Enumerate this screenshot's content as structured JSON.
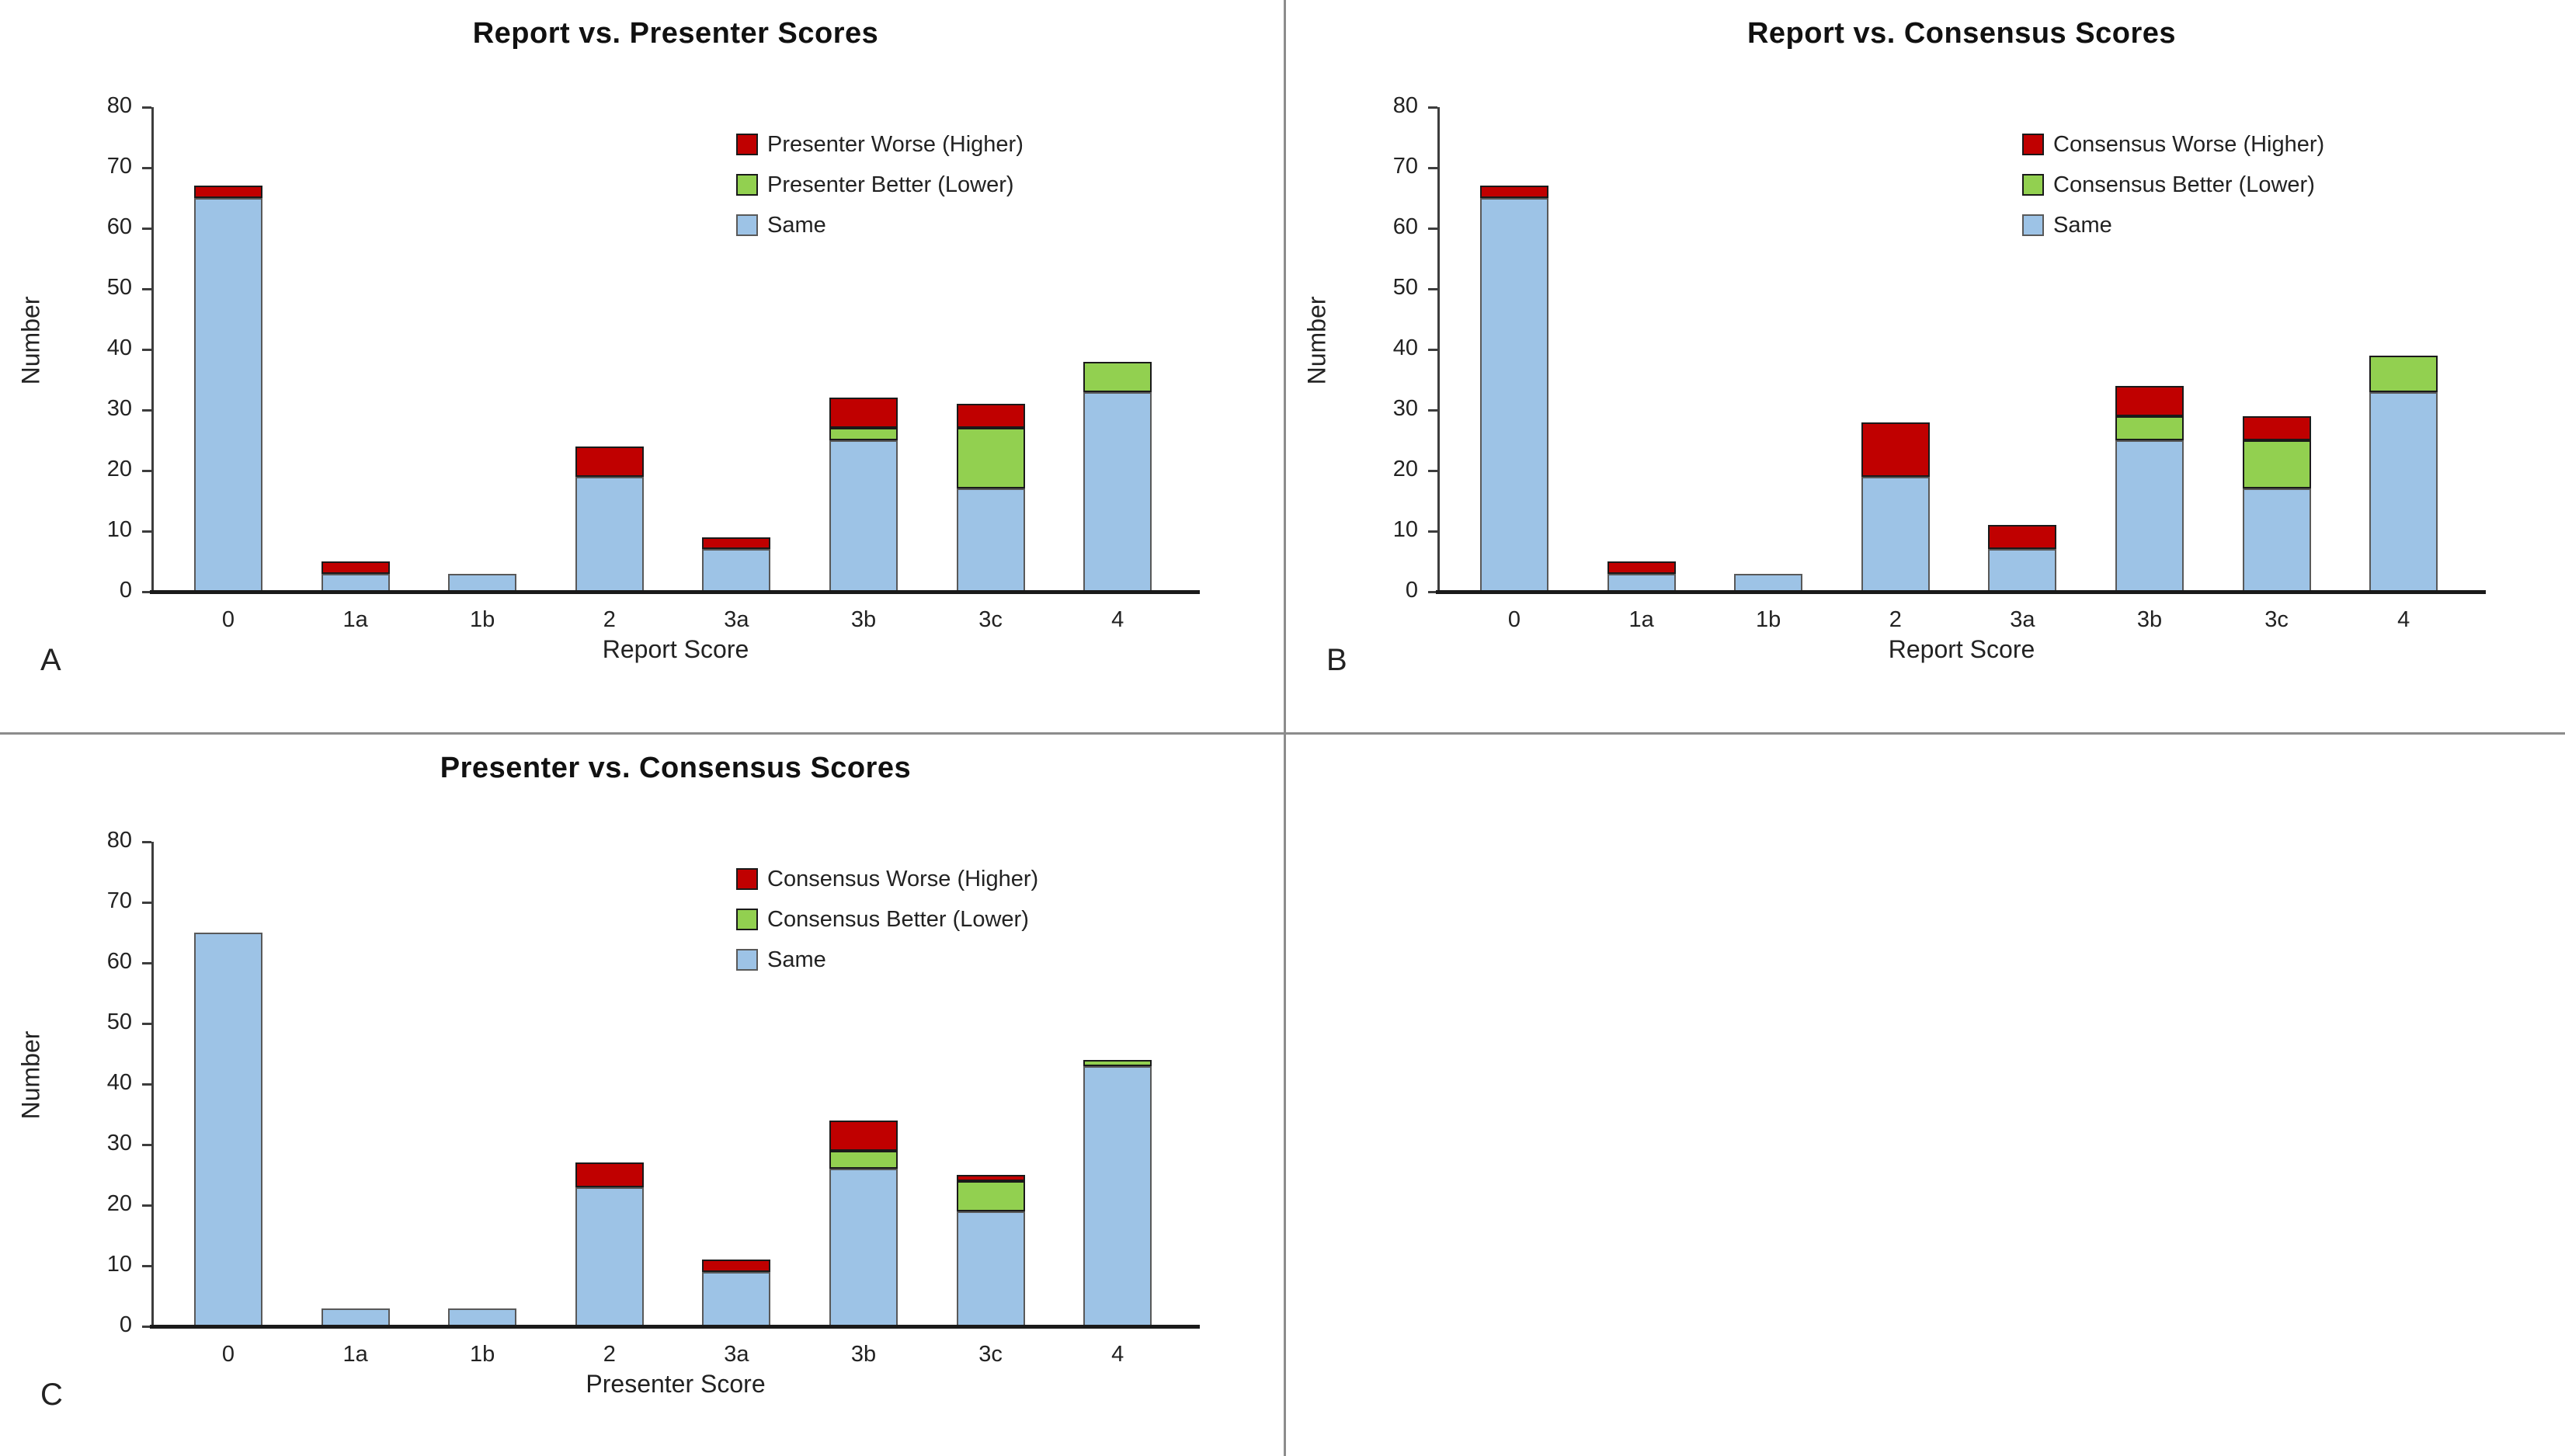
{
  "page": {
    "background": "#ffffff",
    "divider_color": "#8c8c8c"
  },
  "palette": {
    "same_fill": "#9DC3E6",
    "same_border": "#595959",
    "better_fill": "#92D050",
    "worse_fill": "#C00000",
    "diff_border": "#1a1a1a",
    "axis_color": "#1a1a1a",
    "text_color": "#222222"
  },
  "chart_data": [
    {
      "panel_label": "A",
      "type": "bar",
      "stacked": true,
      "title": "Report vs. Presenter Scores",
      "xlabel": "Report Score",
      "ylabel": "Number",
      "ylim": [
        0,
        80
      ],
      "ytick_step": 10,
      "grid": false,
      "legend_position": "upper-right-inside",
      "categories": [
        "0",
        "1a",
        "1b",
        "2",
        "3a",
        "3b",
        "3c",
        "4"
      ],
      "series": [
        {
          "name": "Same",
          "color": "#9DC3E6",
          "border": "#595959",
          "values": [
            65,
            3,
            3,
            19,
            7,
            25,
            17,
            33
          ]
        },
        {
          "name": "Presenter Better (Lower)",
          "color": "#92D050",
          "border": "#1a1a1a",
          "values": [
            0,
            0,
            0,
            0,
            0,
            2,
            10,
            5
          ]
        },
        {
          "name": "Presenter Worse (Higher)",
          "color": "#C00000",
          "border": "#1a1a1a",
          "values": [
            2,
            2,
            0,
            5,
            2,
            5,
            4,
            0
          ]
        }
      ],
      "totals": [
        67,
        5,
        3,
        24,
        9,
        32,
        31,
        38
      ],
      "legend": [
        {
          "label": "Presenter Worse (Higher)",
          "color": "#C00000",
          "border": "#1a1a1a"
        },
        {
          "label": "Presenter Better (Lower)",
          "color": "#92D050",
          "border": "#1a1a1a"
        },
        {
          "label": "Same",
          "color": "#9DC3E6",
          "border": "#595959"
        }
      ]
    },
    {
      "panel_label": "B",
      "type": "bar",
      "stacked": true,
      "title": "Report vs. Consensus Scores",
      "xlabel": "Report Score",
      "ylabel": "Number",
      "ylim": [
        0,
        80
      ],
      "ytick_step": 10,
      "grid": false,
      "legend_position": "upper-right-inside",
      "categories": [
        "0",
        "1a",
        "1b",
        "2",
        "3a",
        "3b",
        "3c",
        "4"
      ],
      "series": [
        {
          "name": "Same",
          "color": "#9DC3E6",
          "border": "#595959",
          "values": [
            65,
            3,
            3,
            19,
            7,
            25,
            17,
            33
          ]
        },
        {
          "name": "Consensus Better (Lower)",
          "color": "#92D050",
          "border": "#1a1a1a",
          "values": [
            0,
            0,
            0,
            0,
            0,
            4,
            8,
            6
          ]
        },
        {
          "name": "Consensus Worse (Higher)",
          "color": "#C00000",
          "border": "#1a1a1a",
          "values": [
            2,
            2,
            0,
            9,
            4,
            5,
            4,
            0
          ]
        }
      ],
      "totals": [
        67,
        5,
        3,
        28,
        11,
        34,
        29,
        39
      ],
      "legend": [
        {
          "label": "Consensus Worse (Higher)",
          "color": "#C00000",
          "border": "#1a1a1a"
        },
        {
          "label": "Consensus Better (Lower)",
          "color": "#92D050",
          "border": "#1a1a1a"
        },
        {
          "label": "Same",
          "color": "#9DC3E6",
          "border": "#595959"
        }
      ]
    },
    {
      "panel_label": "C",
      "type": "bar",
      "stacked": true,
      "title": "Presenter vs. Consensus Scores",
      "xlabel": "Presenter Score",
      "ylabel": "Number",
      "ylim": [
        0,
        80
      ],
      "ytick_step": 10,
      "grid": false,
      "legend_position": "upper-right-inside",
      "categories": [
        "0",
        "1a",
        "1b",
        "2",
        "3a",
        "3b",
        "3c",
        "4"
      ],
      "series": [
        {
          "name": "Same",
          "color": "#9DC3E6",
          "border": "#595959",
          "values": [
            65,
            3,
            3,
            23,
            9,
            26,
            19,
            43
          ]
        },
        {
          "name": "Consensus Better (Lower)",
          "color": "#92D050",
          "border": "#1a1a1a",
          "values": [
            0,
            0,
            0,
            0,
            0,
            3,
            5,
            1
          ]
        },
        {
          "name": "Consensus Worse (Higher)",
          "color": "#C00000",
          "border": "#1a1a1a",
          "values": [
            0,
            0,
            0,
            4,
            2,
            5,
            1,
            0
          ]
        }
      ],
      "totals": [
        65,
        3,
        3,
        27,
        11,
        34,
        25,
        44
      ],
      "legend": [
        {
          "label": "Consensus Worse (Higher)",
          "color": "#C00000",
          "border": "#1a1a1a"
        },
        {
          "label": "Consensus Better (Lower)",
          "color": "#92D050",
          "border": "#1a1a1a"
        },
        {
          "label": "Same",
          "color": "#9DC3E6",
          "border": "#595959"
        }
      ]
    }
  ]
}
